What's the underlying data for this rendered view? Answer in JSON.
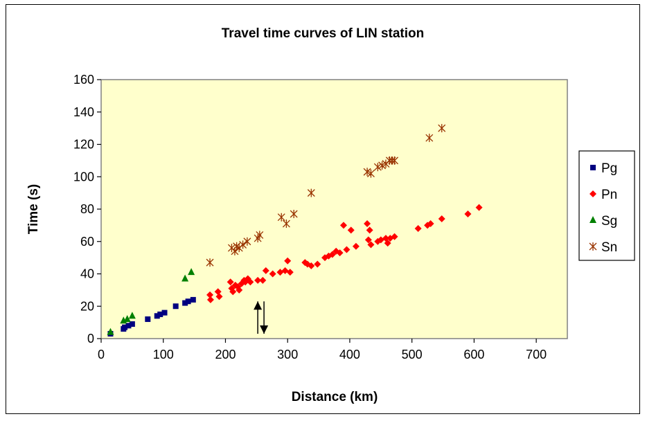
{
  "chart_data": {
    "type": "scatter",
    "title": "Travel time curves of LIN station",
    "xlabel": "Distance (km)",
    "ylabel": "Time (s)",
    "xlim": [
      0,
      750
    ],
    "ylim": [
      0,
      160
    ],
    "xticks": [
      0,
      100,
      200,
      300,
      400,
      500,
      600,
      700
    ],
    "yticks": [
      0,
      20,
      40,
      60,
      80,
      100,
      120,
      140,
      160
    ],
    "grid": false,
    "legend_position": "right",
    "plot_background": "#FFFFCC",
    "series": [
      {
        "name": "Pg",
        "marker": "square",
        "color": "#000080",
        "points": [
          [
            15,
            3
          ],
          [
            36,
            6
          ],
          [
            38,
            7
          ],
          [
            44,
            8
          ],
          [
            50,
            9
          ],
          [
            75,
            12
          ],
          [
            90,
            14
          ],
          [
            95,
            15
          ],
          [
            102,
            16
          ],
          [
            120,
            20
          ],
          [
            135,
            22
          ],
          [
            140,
            23
          ],
          [
            148,
            24
          ]
        ]
      },
      {
        "name": "Pn",
        "marker": "diamond",
        "color": "#FF0000",
        "points": [
          [
            175,
            27
          ],
          [
            176,
            24
          ],
          [
            188,
            29
          ],
          [
            190,
            26
          ],
          [
            208,
            35
          ],
          [
            210,
            31
          ],
          [
            212,
            29
          ],
          [
            216,
            33
          ],
          [
            220,
            32
          ],
          [
            222,
            30
          ],
          [
            226,
            34
          ],
          [
            230,
            36
          ],
          [
            232,
            35
          ],
          [
            236,
            37
          ],
          [
            240,
            35
          ],
          [
            252,
            36
          ],
          [
            260,
            36
          ],
          [
            265,
            42
          ],
          [
            276,
            40
          ],
          [
            288,
            41
          ],
          [
            296,
            42
          ],
          [
            300,
            48
          ],
          [
            304,
            41
          ],
          [
            328,
            47
          ],
          [
            332,
            46
          ],
          [
            338,
            45
          ],
          [
            348,
            46
          ],
          [
            360,
            50
          ],
          [
            366,
            51
          ],
          [
            372,
            52
          ],
          [
            378,
            54
          ],
          [
            384,
            53
          ],
          [
            390,
            70
          ],
          [
            395,
            55
          ],
          [
            402,
            67
          ],
          [
            410,
            57
          ],
          [
            428,
            71
          ],
          [
            430,
            61
          ],
          [
            432,
            67
          ],
          [
            434,
            58
          ],
          [
            445,
            60
          ],
          [
            450,
            61
          ],
          [
            458,
            62
          ],
          [
            461,
            59
          ],
          [
            465,
            62
          ],
          [
            472,
            63
          ],
          [
            510,
            68
          ],
          [
            525,
            70
          ],
          [
            530,
            71
          ],
          [
            548,
            74
          ],
          [
            590,
            77
          ],
          [
            608,
            81
          ]
        ]
      },
      {
        "name": "Sg",
        "marker": "triangle",
        "color": "#008000",
        "points": [
          [
            15,
            4
          ],
          [
            36,
            11
          ],
          [
            42,
            12
          ],
          [
            50,
            14
          ],
          [
            135,
            37
          ],
          [
            145,
            41
          ]
        ]
      },
      {
        "name": "Sn",
        "marker": "star",
        "color": "#993300",
        "points": [
          [
            175,
            47
          ],
          [
            210,
            56
          ],
          [
            215,
            54
          ],
          [
            218,
            57
          ],
          [
            222,
            56
          ],
          [
            228,
            58
          ],
          [
            235,
            60
          ],
          [
            252,
            62
          ],
          [
            255,
            64
          ],
          [
            290,
            75
          ],
          [
            298,
            71
          ],
          [
            310,
            77
          ],
          [
            338,
            90
          ],
          [
            428,
            103
          ],
          [
            434,
            102
          ],
          [
            445,
            106
          ],
          [
            452,
            107
          ],
          [
            458,
            108
          ],
          [
            464,
            110
          ],
          [
            468,
            110
          ],
          [
            472,
            110
          ],
          [
            528,
            124
          ],
          [
            548,
            130
          ]
        ]
      }
    ],
    "annotations": [
      {
        "type": "arrow",
        "direction": "up",
        "x": 252,
        "y_from": 3,
        "y_to": 23
      },
      {
        "type": "arrow",
        "direction": "down",
        "x": 262,
        "y_from": 23,
        "y_to": 3
      }
    ]
  }
}
